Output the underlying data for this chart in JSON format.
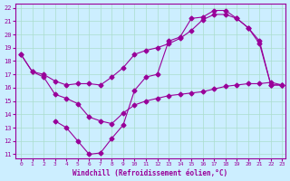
{
  "xlabel": "Windchill (Refroidissement éolien,°C)",
  "line_color": "#990099",
  "bg_color": "#cceeff",
  "grid_color": "#aaddcc",
  "xlim": [
    0,
    23
  ],
  "ylim": [
    11,
    22
  ],
  "xticks": [
    0,
    1,
    2,
    3,
    4,
    5,
    6,
    7,
    8,
    9,
    10,
    11,
    12,
    13,
    14,
    15,
    16,
    17,
    18,
    19,
    20,
    21,
    22,
    23
  ],
  "yticks": [
    11,
    12,
    13,
    14,
    15,
    16,
    17,
    18,
    19,
    20,
    21,
    22
  ],
  "line1_x": [
    0,
    1,
    2,
    3,
    4,
    5,
    6,
    7,
    8,
    9,
    10,
    11,
    12,
    13,
    14,
    15,
    16,
    17,
    18,
    19,
    20,
    21,
    22,
    23
  ],
  "line1_y": [
    18.5,
    17.2,
    17.0,
    16.5,
    16.2,
    16.3,
    16.3,
    16.2,
    16.8,
    17.5,
    18.5,
    18.8,
    19.0,
    19.3,
    19.7,
    20.3,
    21.1,
    21.5,
    21.5,
    21.2,
    20.5,
    19.3,
    16.2,
    16.2
  ],
  "line2_x": [
    0,
    1,
    2,
    3,
    4,
    5,
    6,
    7,
    8,
    9,
    10,
    11,
    12,
    13,
    14,
    15,
    16,
    17,
    18,
    19,
    20,
    21,
    22,
    23
  ],
  "line2_y": [
    18.5,
    17.2,
    16.8,
    15.5,
    15.2,
    14.8,
    13.8,
    13.5,
    13.3,
    14.1,
    14.7,
    15.0,
    15.2,
    15.4,
    15.5,
    15.6,
    15.7,
    15.9,
    16.1,
    16.2,
    16.3,
    16.3,
    16.4,
    16.2
  ],
  "line3_x": [
    3,
    4,
    5,
    6,
    7,
    8,
    9,
    10,
    11,
    12,
    13,
    14,
    15,
    16,
    17,
    18,
    19,
    20,
    21,
    22,
    23
  ],
  "line3_y": [
    13.5,
    13.0,
    12.0,
    11.0,
    11.1,
    12.2,
    13.2,
    15.8,
    16.8,
    17.0,
    19.5,
    19.8,
    21.2,
    21.3,
    21.8,
    21.8,
    21.2,
    20.5,
    19.5,
    16.2,
    16.2
  ]
}
